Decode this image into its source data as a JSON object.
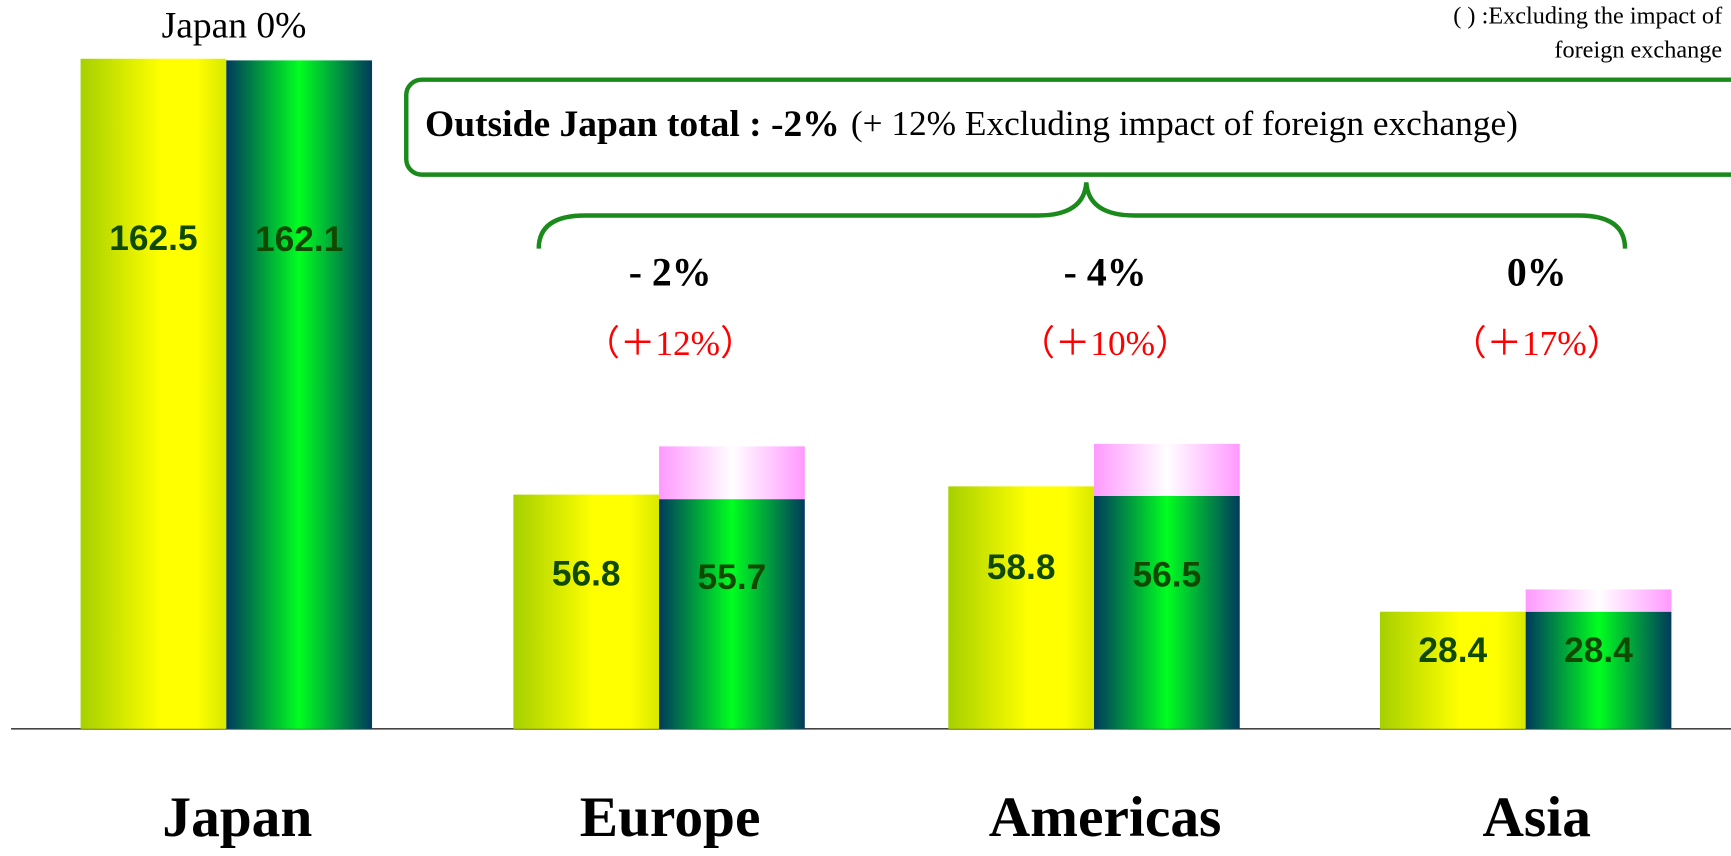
{
  "chart_data": {
    "type": "bar",
    "categories": [
      "Japan",
      "Europe",
      "Americas",
      "Asia"
    ],
    "series": [
      {
        "color": "#ffff00",
        "values": [
          162.5,
          56.8,
          58.8,
          28.4
        ]
      },
      {
        "color": "#00ff20",
        "values": [
          162.1,
          55.7,
          56.5,
          28.4
        ]
      },
      {
        "color": "#ff99ff",
        "values": [
          null,
          12.8,
          12.6,
          5.4
        ]
      }
    ],
    "ylim": [
      0,
      170
    ],
    "japan_note": "Japan 0%",
    "region_changes": [
      "- 2%",
      "- 4%",
      "0%"
    ],
    "region_changes_ex_fx": [
      "（＋12%）",
      "（＋10%）",
      "（＋17%）"
    ],
    "total_label": "Outside Japan total : -2%",
    "total_ex_fx": "(+ 12% Excluding impact of foreign exchange)",
    "note_lines": [
      "( ) :Excluding the impact of",
      "foreign exchange"
    ]
  }
}
